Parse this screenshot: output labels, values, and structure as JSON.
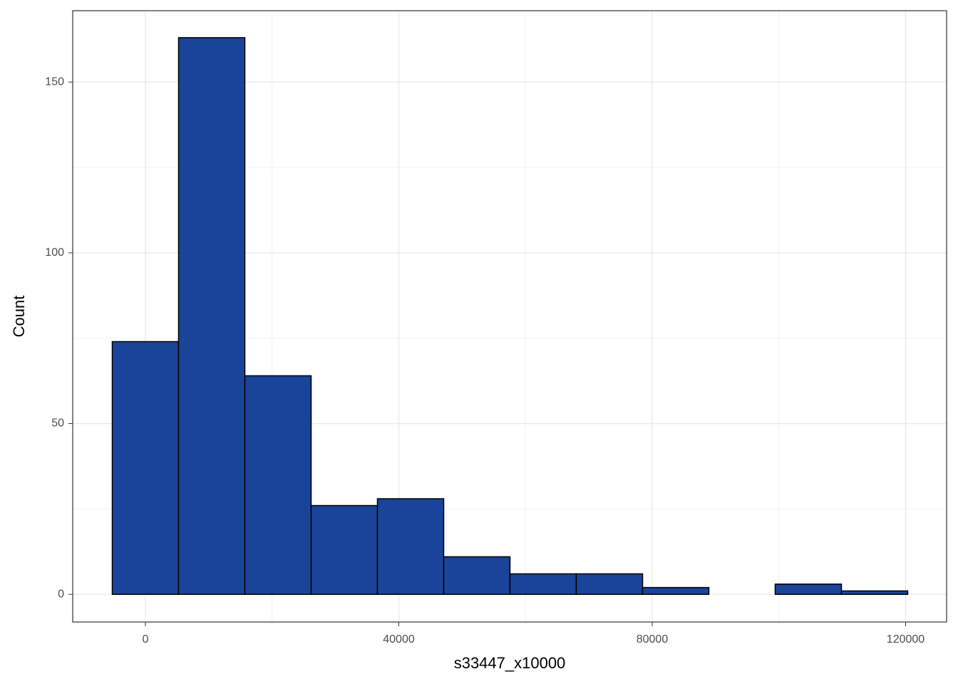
{
  "chart_data": {
    "type": "histogram",
    "x_label": "s33447_x10000",
    "y_label": "Count",
    "bins": [
      -5232,
      5232,
      15696,
      26160,
      36624,
      47088,
      57552,
      68016,
      78480,
      88944,
      99408,
      109872,
      120336
    ],
    "values": [
      74,
      163,
      64,
      26,
      28,
      11,
      6,
      6,
      2,
      0,
      3,
      1
    ],
    "color": "#1a4499",
    "edge_color": "#000000",
    "xlim": [
      -11477,
      126470
    ],
    "ylim": [
      -8.1,
      170.9
    ],
    "xticks": [
      0,
      40000,
      80000,
      120000
    ],
    "yticks": [
      0,
      50,
      100,
      150
    ],
    "x_minor_ticks": [
      20000,
      60000,
      100000
    ],
    "y_minor_ticks": [
      25,
      75,
      125
    ],
    "grid": true
  }
}
